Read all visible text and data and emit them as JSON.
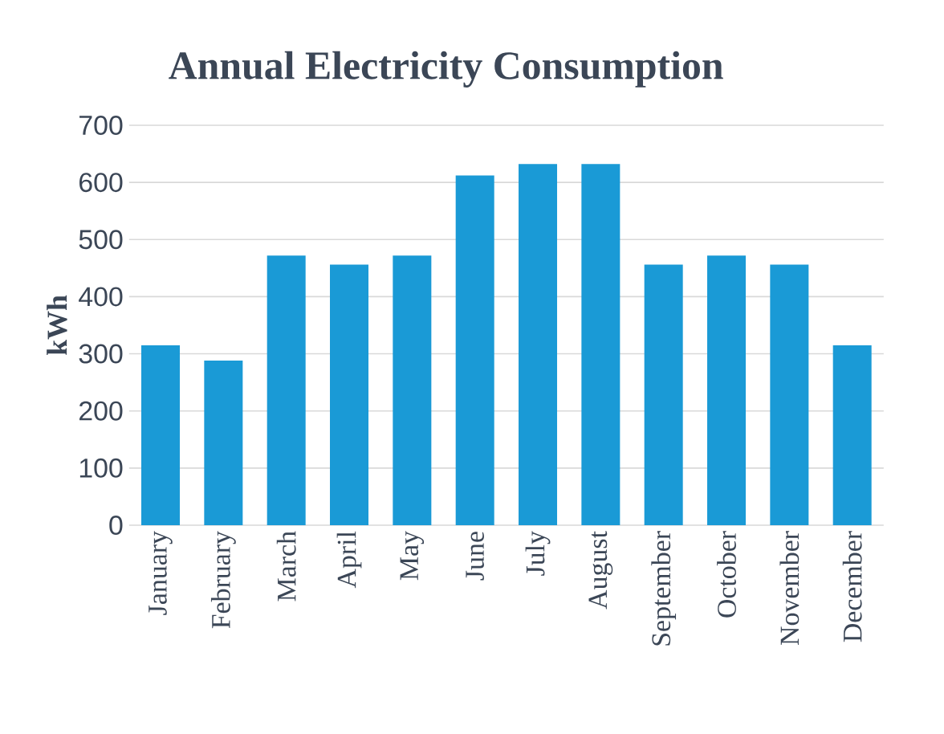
{
  "chart_data": {
    "type": "bar",
    "title": "Annual Electricity Consumption",
    "ylabel": "kWh",
    "categories": [
      "January",
      "February",
      "March",
      "April",
      "May",
      "June",
      "July",
      "August",
      "September",
      "October",
      "November",
      "December"
    ],
    "values": [
      315,
      288,
      472,
      456,
      472,
      612,
      632,
      632,
      456,
      472,
      456,
      315
    ],
    "color": "#1a9ad6",
    "ylim": [
      0,
      700
    ],
    "yticks": [
      0,
      100,
      200,
      300,
      400,
      500,
      600,
      700
    ],
    "grid": "y"
  }
}
